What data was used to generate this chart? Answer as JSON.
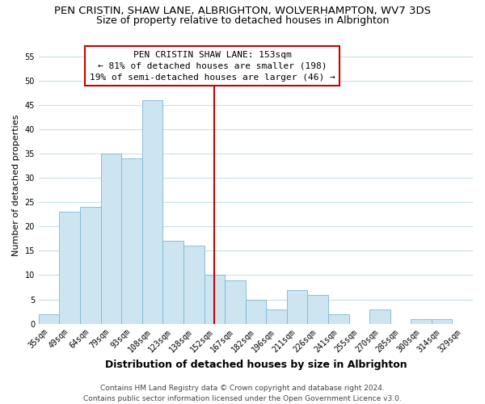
{
  "title": "PEN CRISTIN, SHAW LANE, ALBRIGHTON, WOLVERHAMPTON, WV7 3DS",
  "subtitle": "Size of property relative to detached houses in Albrighton",
  "xlabel": "Distribution of detached houses by size in Albrighton",
  "ylabel": "Number of detached properties",
  "bar_labels": [
    "35sqm",
    "49sqm",
    "64sqm",
    "79sqm",
    "93sqm",
    "108sqm",
    "123sqm",
    "138sqm",
    "152sqm",
    "167sqm",
    "182sqm",
    "196sqm",
    "211sqm",
    "226sqm",
    "241sqm",
    "255sqm",
    "270sqm",
    "285sqm",
    "300sqm",
    "314sqm",
    "329sqm"
  ],
  "bar_values": [
    2,
    23,
    24,
    35,
    34,
    46,
    17,
    16,
    10,
    9,
    5,
    3,
    7,
    6,
    2,
    0,
    3,
    0,
    1,
    1,
    0
  ],
  "bar_color": "#cce5f0",
  "bar_edge_color": "#7ab8d4",
  "ylim": [
    0,
    57
  ],
  "yticks": [
    0,
    5,
    10,
    15,
    20,
    25,
    30,
    35,
    40,
    45,
    50,
    55
  ],
  "vline_index": 8,
  "vline_color": "#cc0000",
  "annotation_title": "PEN CRISTIN SHAW LANE: 153sqm",
  "annotation_line1": "← 81% of detached houses are smaller (198)",
  "annotation_line2": "19% of semi-detached houses are larger (46) →",
  "annotation_box_color": "#ffffff",
  "annotation_box_edge": "#cc0000",
  "footer1": "Contains HM Land Registry data © Crown copyright and database right 2024.",
  "footer2": "Contains public sector information licensed under the Open Government Licence v3.0.",
  "background_color": "#ffffff",
  "grid_color": "#c8dfe8",
  "title_fontsize": 9.5,
  "subtitle_fontsize": 9,
  "xlabel_fontsize": 9,
  "ylabel_fontsize": 8,
  "tick_fontsize": 7,
  "annotation_fontsize": 8,
  "footer_fontsize": 6.5
}
